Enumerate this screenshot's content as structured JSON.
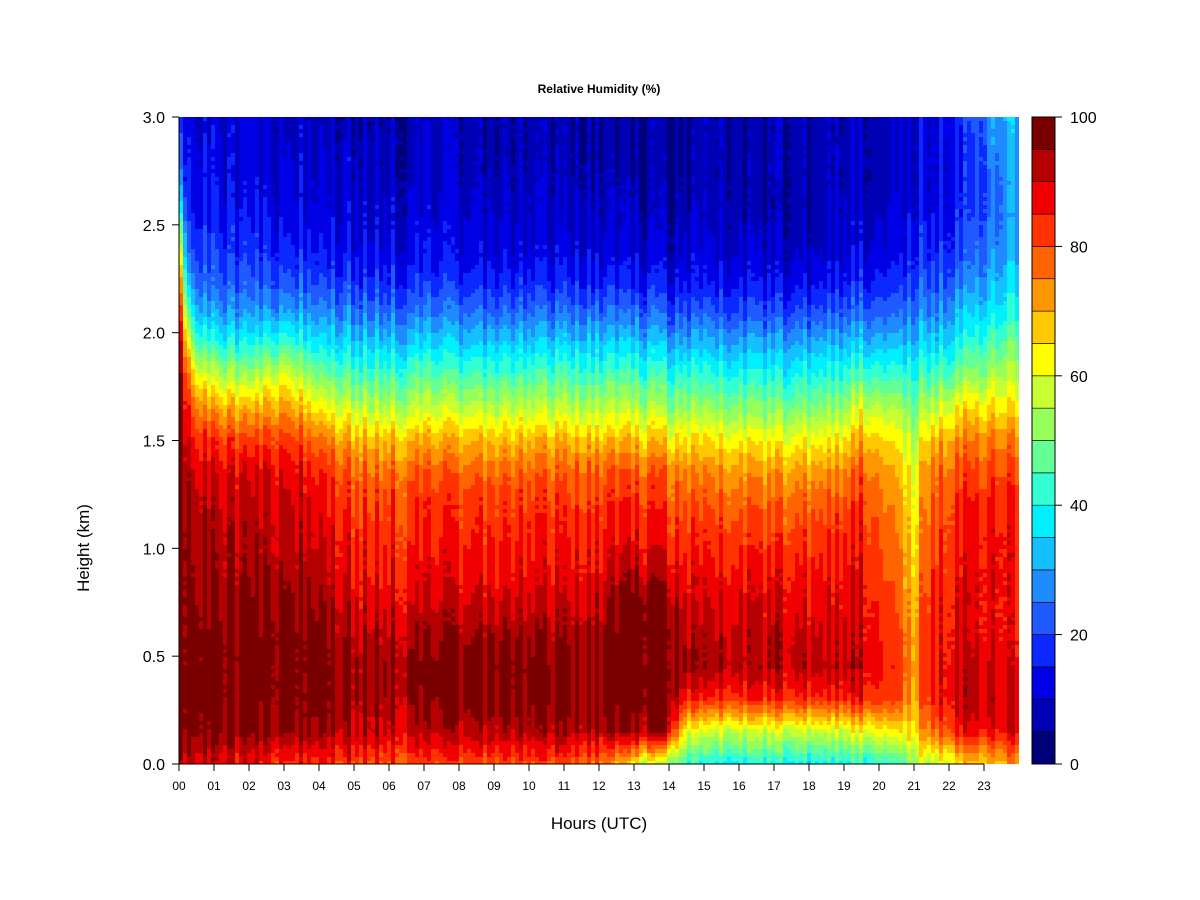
{
  "chart_data": {
    "type": "heatmap",
    "title": "Relative Humidity (%)",
    "xlabel": "Hours (UTC)",
    "ylabel": "Height (km)",
    "xlim": [
      0,
      24
    ],
    "ylim": [
      0.0,
      3.0
    ],
    "x_tick_labels": [
      "00",
      "01",
      "02",
      "03",
      "04",
      "05",
      "06",
      "07",
      "08",
      "09",
      "10",
      "11",
      "12",
      "13",
      "14",
      "15",
      "16",
      "17",
      "18",
      "19",
      "20",
      "21",
      "22",
      "23"
    ],
    "y_tick_labels": [
      "0.0",
      "0.5",
      "1.0",
      "1.5",
      "2.0",
      "2.5",
      "3.0"
    ],
    "y_tick_values": [
      0.0,
      0.5,
      1.0,
      1.5,
      2.0,
      2.5,
      3.0
    ],
    "colorbar": {
      "min": 0,
      "max": 100,
      "step": 5,
      "tick_values": [
        0,
        20,
        40,
        60,
        80,
        100
      ],
      "tick_labels": [
        "0",
        "20",
        "40",
        "60",
        "80",
        "100"
      ],
      "colors": [
        "#00007a",
        "#0000b4",
        "#0000e6",
        "#0a28ff",
        "#1e5aff",
        "#1e8cff",
        "#14c0ff",
        "#00f0ff",
        "#32ffd2",
        "#64ff96",
        "#96ff5a",
        "#c8ff32",
        "#ffff00",
        "#ffc800",
        "#ff9600",
        "#ff6400",
        "#ff3200",
        "#f00000",
        "#b40000",
        "#7a0000"
      ]
    },
    "series": [
      {
        "x": 0.0,
        "h": [
          94,
          99,
          99,
          99,
          99,
          99,
          99,
          99,
          99,
          99,
          99,
          99,
          99,
          96,
          90,
          80,
          65,
          45,
          30,
          22,
          18
        ]
      },
      {
        "x": 0.25,
        "h": [
          92,
          98,
          99,
          99,
          99,
          98,
          98,
          97,
          96,
          94,
          90,
          85,
          78,
          64,
          48,
          32,
          22,
          18,
          15,
          14,
          13
        ]
      },
      {
        "x": 0.5,
        "h": [
          90,
          97,
          98,
          98,
          98,
          96,
          95,
          94,
          93,
          90,
          85,
          76,
          62,
          46,
          32,
          24,
          19,
          15,
          13,
          12,
          11
        ]
      },
      {
        "x": 1.0,
        "h": [
          88,
          96,
          97,
          97,
          96,
          94,
          93,
          92,
          90,
          88,
          82,
          70,
          56,
          40,
          28,
          21,
          17,
          14,
          12,
          11,
          10
        ]
      },
      {
        "x": 2.0,
        "h": [
          86,
          95,
          97,
          98,
          97,
          95,
          93,
          92,
          90,
          88,
          80,
          68,
          52,
          38,
          27,
          20,
          16,
          13,
          11,
          10,
          10
        ]
      },
      {
        "x": 3.0,
        "h": [
          85,
          96,
          99,
          99,
          99,
          97,
          95,
          93,
          92,
          90,
          84,
          74,
          62,
          45,
          31,
          22,
          17,
          14,
          12,
          11,
          10
        ]
      },
      {
        "x": 4.0,
        "h": [
          85,
          96,
          99,
          99,
          98,
          96,
          93,
          91,
          89,
          86,
          78,
          64,
          50,
          38,
          28,
          20,
          15,
          13,
          11,
          10,
          9
        ]
      },
      {
        "x": 5.0,
        "h": [
          82,
          92,
          95,
          95,
          93,
          90,
          87,
          85,
          82,
          78,
          70,
          57,
          46,
          35,
          25,
          18,
          13,
          11,
          10,
          9,
          8
        ]
      },
      {
        "x": 7.0,
        "h": [
          80,
          91,
          95,
          96,
          93,
          89,
          86,
          84,
          82,
          78,
          69,
          56,
          45,
          34,
          24,
          16,
          12,
          10,
          9,
          8,
          7
        ]
      },
      {
        "x": 9.0,
        "h": [
          80,
          92,
          97,
          97,
          94,
          90,
          86,
          84,
          82,
          77,
          68,
          56,
          44,
          33,
          23,
          15,
          11,
          9,
          8,
          7,
          7
        ]
      },
      {
        "x": 11.0,
        "h": [
          80,
          92,
          96,
          96,
          93,
          89,
          86,
          84,
          81,
          77,
          68,
          55,
          44,
          33,
          23,
          15,
          10,
          8,
          7,
          6,
          6
        ]
      },
      {
        "x": 12.0,
        "h": [
          76,
          92,
          96,
          96,
          94,
          90,
          87,
          85,
          82,
          78,
          68,
          55,
          44,
          33,
          23,
          14,
          10,
          8,
          7,
          6,
          6
        ]
      },
      {
        "x": 13.0,
        "h": [
          62,
          94,
          99,
          99,
          99,
          99,
          92,
          86,
          83,
          78,
          68,
          55,
          44,
          33,
          22,
          14,
          9,
          7,
          6,
          5,
          5
        ]
      },
      {
        "x": 14.0,
        "h": [
          52,
          92,
          99,
          99,
          99,
          96,
          90,
          85,
          82,
          77,
          66,
          53,
          42,
          31,
          21,
          13,
          9,
          7,
          6,
          5,
          5
        ]
      },
      {
        "x": 14.5,
        "h": [
          42,
          60,
          84,
          94,
          92,
          88,
          85,
          82,
          78,
          74,
          64,
          52,
          41,
          30,
          20,
          13,
          9,
          7,
          6,
          5,
          5
        ]
      },
      {
        "x": 15.0,
        "h": [
          38,
          56,
          82,
          92,
          90,
          88,
          85,
          82,
          78,
          73,
          63,
          51,
          40,
          30,
          20,
          12,
          9,
          7,
          6,
          6,
          6
        ]
      },
      {
        "x": 17.0,
        "h": [
          40,
          58,
          84,
          93,
          92,
          89,
          86,
          82,
          78,
          72,
          62,
          50,
          40,
          30,
          20,
          13,
          9,
          7,
          7,
          7,
          7
        ]
      },
      {
        "x": 19.0,
        "h": [
          40,
          58,
          84,
          92,
          90,
          88,
          86,
          84,
          80,
          74,
          64,
          52,
          42,
          32,
          22,
          14,
          10,
          9,
          8,
          8,
          8
        ]
      },
      {
        "x": 19.5,
        "h": [
          42,
          62,
          86,
          92,
          91,
          90,
          88,
          86,
          84,
          80,
          72,
          60,
          46,
          34,
          24,
          16,
          12,
          10,
          9,
          9,
          9
        ]
      },
      {
        "x": 20.5,
        "h": [
          44,
          64,
          82,
          84,
          82,
          80,
          78,
          76,
          74,
          70,
          64,
          55,
          44,
          33,
          24,
          17,
          13,
          11,
          10,
          10,
          10
        ]
      },
      {
        "x": 21.0,
        "h": [
          54,
          66,
          72,
          74,
          72,
          70,
          68,
          66,
          64,
          62,
          56,
          50,
          42,
          34,
          26,
          20,
          16,
          13,
          12,
          12,
          12
        ]
      },
      {
        "x": 21.5,
        "h": [
          58,
          78,
          86,
          88,
          87,
          86,
          84,
          82,
          80,
          78,
          70,
          58,
          46,
          36,
          28,
          21,
          17,
          14,
          13,
          13,
          13
        ]
      },
      {
        "x": 22.5,
        "h": [
          66,
          86,
          92,
          90,
          88,
          88,
          87,
          86,
          84,
          80,
          74,
          64,
          50,
          40,
          32,
          25,
          20,
          17,
          16,
          16,
          17
        ]
      },
      {
        "x": 23.3,
        "h": [
          70,
          88,
          92,
          90,
          88,
          88,
          88,
          88,
          86,
          82,
          76,
          66,
          56,
          46,
          38,
          32,
          28,
          26,
          26,
          28,
          30
        ]
      },
      {
        "x": 23.8,
        "h": [
          72,
          88,
          90,
          88,
          86,
          86,
          86,
          86,
          84,
          80,
          74,
          64,
          56,
          48,
          40,
          34,
          30,
          28,
          28,
          30,
          32
        ]
      }
    ]
  }
}
